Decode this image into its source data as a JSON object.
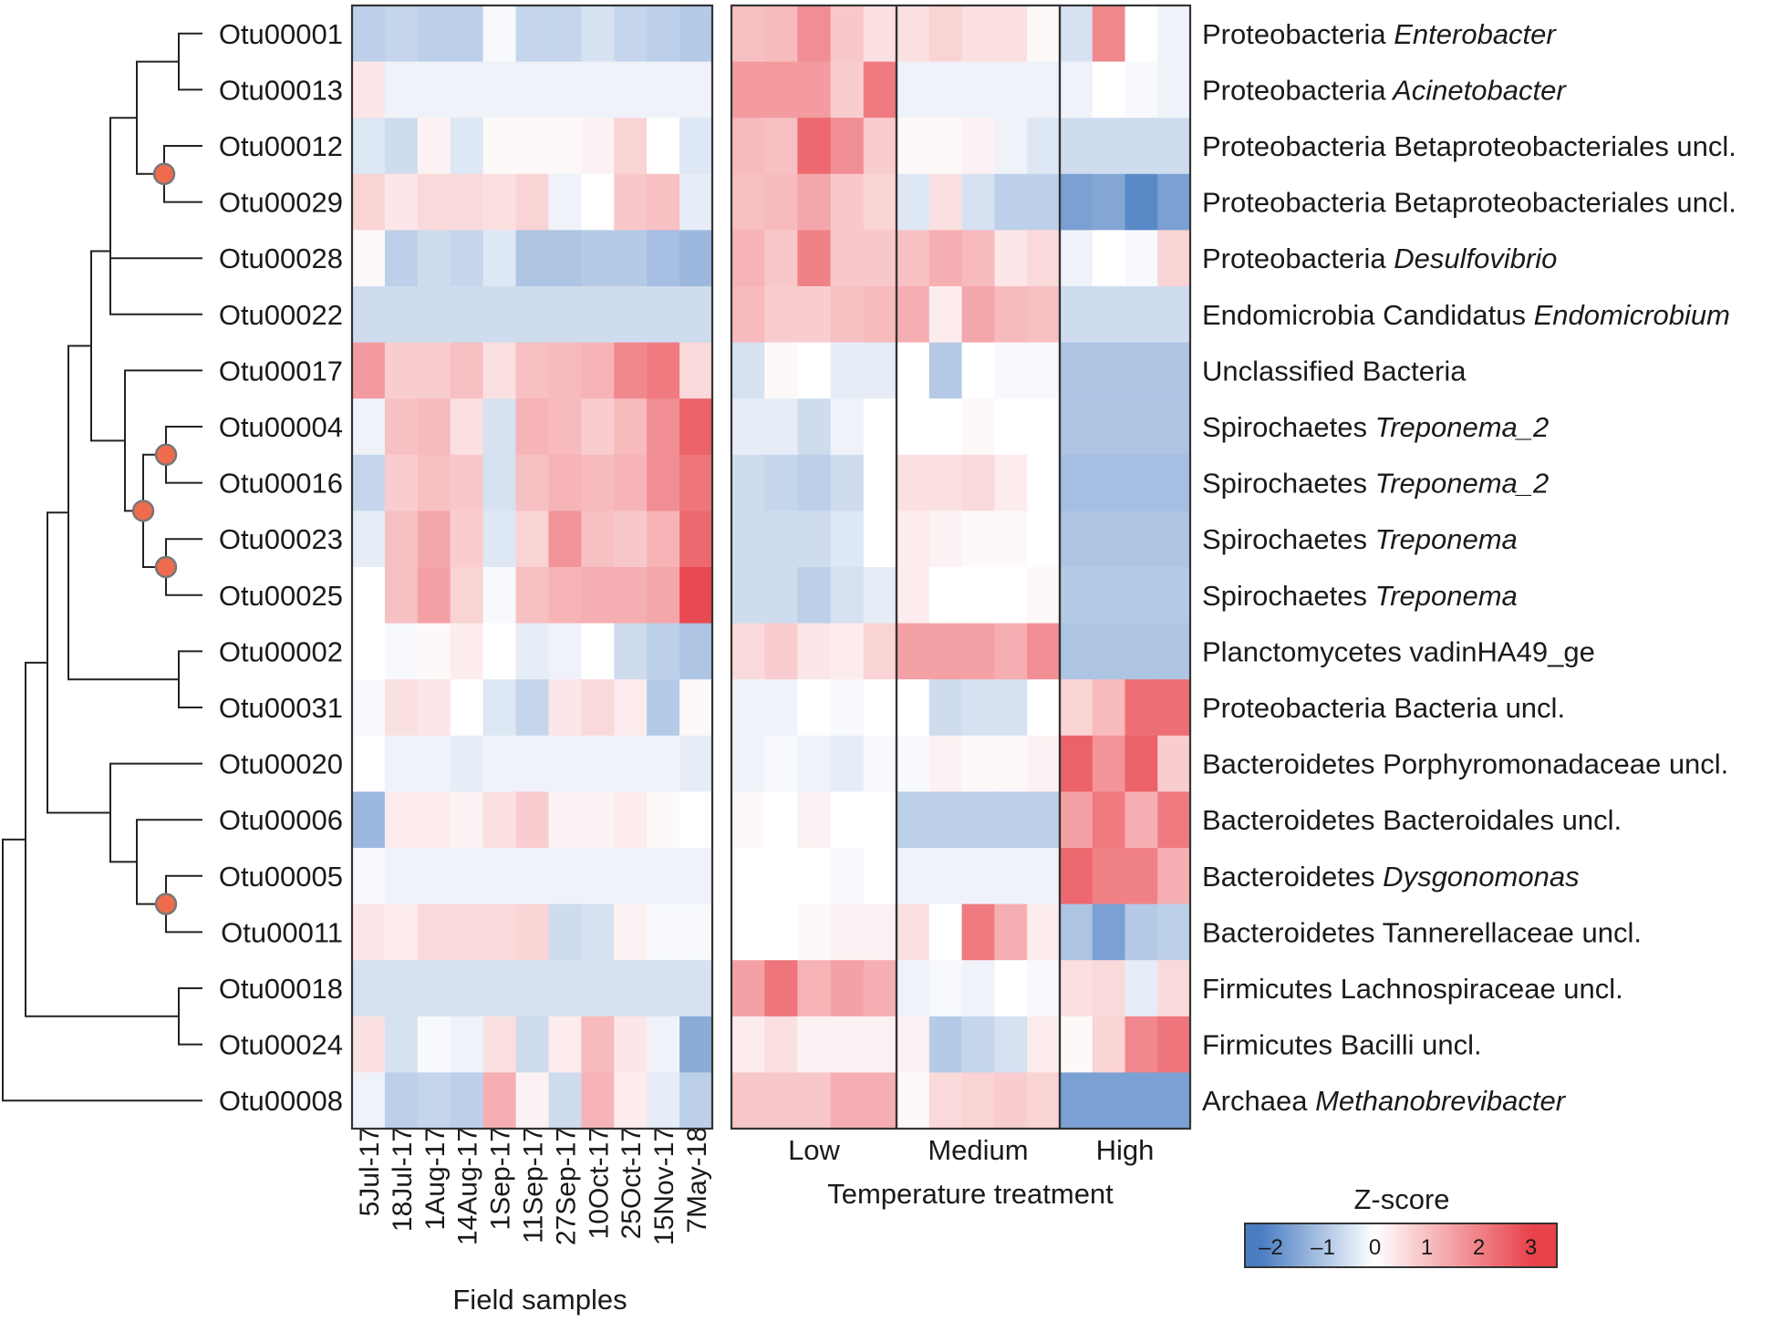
{
  "chart_data": {
    "type": "heatmap",
    "rows": [
      {
        "otu": "Otu00001",
        "taxon": "Proteobacteria",
        "genus": "Enterobacter",
        "genus_italic": true
      },
      {
        "otu": "Otu00013",
        "taxon": "Proteobacteria",
        "genus": "Acinetobacter",
        "genus_italic": true
      },
      {
        "otu": "Otu00012",
        "taxon": "Proteobacteria",
        "genus": "Betaproteobacteriales uncl.",
        "genus_italic": false
      },
      {
        "otu": "Otu00029",
        "taxon": "Proteobacteria",
        "genus": "Betaproteobacteriales uncl.",
        "genus_italic": false
      },
      {
        "otu": "Otu00028",
        "taxon": "Proteobacteria",
        "genus": "Desulfovibrio",
        "genus_italic": true
      },
      {
        "otu": "Otu00022",
        "taxon": "Endomicrobia  Candidatus",
        "genus": "Endomicrobium",
        "genus_italic": true
      },
      {
        "otu": "Otu00017",
        "taxon": "Unclassified Bacteria",
        "genus": "",
        "genus_italic": false
      },
      {
        "otu": "Otu00004",
        "taxon": "Spirochaetes",
        "genus": "Treponema_2",
        "genus_italic": true
      },
      {
        "otu": "Otu00016",
        "taxon": "Spirochaetes",
        "genus": "Treponema_2",
        "genus_italic": true
      },
      {
        "otu": "Otu00023",
        "taxon": "Spirochaetes",
        "genus": "Treponema",
        "genus_italic": true
      },
      {
        "otu": "Otu00025",
        "taxon": "Spirochaetes",
        "genus": "Treponema",
        "genus_italic": true
      },
      {
        "otu": "Otu00002",
        "taxon": "Planctomycetes vadinHA49_ge",
        "genus": "",
        "genus_italic": false
      },
      {
        "otu": "Otu00031",
        "taxon": "Proteobacteria  Bacteria uncl.",
        "genus": "",
        "genus_italic": false
      },
      {
        "otu": "Otu00020",
        "taxon": "Bacteroidetes  Porphyromonadaceae uncl.",
        "genus": "",
        "genus_italic": false
      },
      {
        "otu": "Otu00006",
        "taxon": "Bacteroidetes  Bacteroidales uncl.",
        "genus": "",
        "genus_italic": false
      },
      {
        "otu": "Otu00005",
        "taxon": "Bacteroidetes",
        "genus": "Dysgonomonas",
        "genus_italic": true
      },
      {
        "otu": "Otu00011",
        "taxon": "Bacteroidetes Tannerellaceae uncl.",
        "genus": "",
        "genus_italic": false
      },
      {
        "otu": "Otu00018",
        "taxon": "Firmicutes  Lachnospiraceae uncl.",
        "genus": "",
        "genus_italic": false
      },
      {
        "otu": "Otu00024",
        "taxon": "Firmicutes  Bacilli uncl.",
        "genus": "",
        "genus_italic": false
      },
      {
        "otu": "Otu00008",
        "taxon": "Archaea",
        "genus": "Methanobrevibacter",
        "genus_italic": true
      }
    ],
    "field_samples": {
      "xlabel": "Field samples",
      "columns": [
        "5Jul-17",
        "18Jul-17",
        "1Aug-17",
        "14Aug-17",
        "1Sep-17",
        "11Sep-17",
        "27Sep-17",
        "10Oct-17",
        "25Oct-17",
        "15Nov-17",
        "7May-18"
      ],
      "values": [
        [
          -0.8,
          -0.7,
          -0.8,
          -0.8,
          -0.1,
          -0.7,
          -0.7,
          -0.5,
          -0.7,
          -0.8,
          -0.9
        ],
        [
          0.4,
          -0.2,
          -0.2,
          -0.2,
          -0.2,
          -0.2,
          -0.2,
          -0.2,
          -0.2,
          -0.2,
          -0.2
        ],
        [
          -0.4,
          -0.6,
          0.2,
          -0.4,
          0.1,
          0.1,
          0.1,
          0.2,
          0.7,
          0.0,
          -0.4
        ],
        [
          0.7,
          0.4,
          0.6,
          0.6,
          0.5,
          0.7,
          -0.2,
          0.0,
          0.9,
          1.0,
          -0.3
        ],
        [
          0.1,
          -0.8,
          -0.6,
          -0.7,
          -0.4,
          -1.0,
          -1.0,
          -0.9,
          -0.9,
          -1.1,
          -1.2
        ],
        [
          -0.6,
          -0.6,
          -0.6,
          -0.6,
          -0.6,
          -0.6,
          -0.6,
          -0.6,
          -0.6,
          -0.6,
          -0.6
        ],
        [
          1.6,
          0.8,
          0.8,
          1.0,
          0.5,
          1.0,
          1.1,
          1.2,
          1.9,
          2.1,
          0.6
        ],
        [
          -0.2,
          1.0,
          1.1,
          0.5,
          -0.5,
          1.2,
          1.1,
          0.8,
          1.1,
          1.8,
          2.5
        ],
        [
          -0.7,
          0.8,
          1.0,
          0.9,
          -0.5,
          1.0,
          1.2,
          1.1,
          1.2,
          1.8,
          2.2
        ],
        [
          -0.3,
          1.0,
          1.4,
          0.8,
          -0.4,
          0.7,
          1.7,
          1.0,
          0.9,
          1.2,
          2.4
        ],
        [
          0.0,
          1.0,
          1.5,
          0.7,
          -0.1,
          1.0,
          1.2,
          1.3,
          1.3,
          1.4,
          2.9
        ],
        [
          0.0,
          -0.1,
          0.1,
          0.3,
          0.0,
          -0.3,
          -0.2,
          0.0,
          -0.6,
          -0.8,
          -1.0
        ],
        [
          -0.1,
          0.5,
          0.4,
          0.0,
          -0.4,
          -0.7,
          0.4,
          0.6,
          0.3,
          -0.9,
          0.1
        ],
        [
          0.0,
          -0.2,
          -0.2,
          -0.3,
          -0.2,
          -0.2,
          -0.2,
          -0.2,
          -0.2,
          -0.2,
          -0.3
        ],
        [
          -1.2,
          0.3,
          0.3,
          0.2,
          0.5,
          0.8,
          0.2,
          0.2,
          0.3,
          0.1,
          0.0
        ],
        [
          -0.1,
          -0.2,
          -0.2,
          -0.2,
          -0.2,
          -0.2,
          -0.2,
          -0.2,
          -0.2,
          -0.2,
          -0.2
        ],
        [
          0.4,
          0.3,
          0.6,
          0.6,
          0.6,
          0.7,
          -0.6,
          -0.5,
          0.2,
          -0.1,
          -0.1
        ],
        [
          -0.5,
          -0.5,
          -0.5,
          -0.5,
          -0.5,
          -0.5,
          -0.5,
          -0.5,
          -0.5,
          -0.5,
          -0.5
        ],
        [
          0.5,
          -0.5,
          -0.1,
          -0.2,
          0.5,
          -0.6,
          0.3,
          1.1,
          0.4,
          -0.2,
          -1.4
        ],
        [
          -0.2,
          -0.8,
          -0.7,
          -0.8,
          1.3,
          0.2,
          -0.6,
          1.2,
          0.3,
          -0.3,
          -0.8
        ]
      ]
    },
    "temperature": {
      "xlabel": "Temperature treatment",
      "groups": [
        {
          "label": "Low",
          "ncols": 5
        },
        {
          "label": "Medium",
          "ncols": 5
        },
        {
          "label": "High",
          "ncols": 4
        }
      ],
      "values": [
        [
          1.0,
          1.1,
          1.8,
          0.9,
          0.5,
          0.5,
          0.7,
          0.5,
          0.5,
          0.1,
          -0.5,
          1.9,
          0.0,
          -0.2
        ],
        [
          1.6,
          1.6,
          1.6,
          0.8,
          2.1,
          -0.2,
          -0.2,
          -0.2,
          -0.2,
          -0.2,
          -0.2,
          0.0,
          -0.1,
          -0.2
        ],
        [
          1.1,
          1.0,
          2.4,
          1.8,
          0.8,
          0.1,
          0.1,
          0.2,
          -0.2,
          -0.4,
          -0.6,
          -0.6,
          -0.6,
          -0.6
        ],
        [
          1.0,
          1.1,
          1.4,
          0.9,
          0.7,
          -0.4,
          0.5,
          -0.5,
          -0.8,
          -0.8,
          -1.6,
          -1.5,
          -2.0,
          -1.6
        ],
        [
          1.2,
          0.9,
          2.0,
          0.9,
          0.9,
          1.0,
          1.3,
          1.1,
          0.4,
          0.6,
          -0.2,
          0.0,
          -0.1,
          0.7
        ],
        [
          1.1,
          0.8,
          0.8,
          1.0,
          1.1,
          1.3,
          0.3,
          1.4,
          1.1,
          1.0,
          -0.6,
          -0.6,
          -0.6,
          -0.6
        ],
        [
          -0.5,
          0.1,
          0.0,
          -0.3,
          -0.3,
          0.0,
          -0.9,
          0.0,
          -0.1,
          -0.1,
          -1.0,
          -1.0,
          -1.0,
          -1.0
        ],
        [
          -0.3,
          -0.3,
          -0.6,
          -0.2,
          0.0,
          0.0,
          0.0,
          0.1,
          0.0,
          0.0,
          -1.0,
          -1.0,
          -1.0,
          -1.0
        ],
        [
          -0.6,
          -0.7,
          -0.8,
          -0.6,
          0.0,
          0.5,
          0.5,
          0.6,
          0.3,
          0.0,
          -1.1,
          -1.1,
          -1.1,
          -1.1
        ],
        [
          -0.6,
          -0.6,
          -0.6,
          -0.4,
          0.0,
          0.3,
          0.2,
          0.1,
          0.1,
          0.0,
          -1.0,
          -1.0,
          -1.0,
          -1.0
        ],
        [
          -0.6,
          -0.6,
          -0.8,
          -0.5,
          -0.3,
          0.3,
          0.0,
          0.0,
          0.0,
          0.1,
          -0.9,
          -0.9,
          -0.9,
          -0.9
        ],
        [
          0.6,
          0.8,
          0.4,
          0.3,
          0.7,
          1.5,
          1.5,
          1.5,
          1.3,
          1.8,
          -1.0,
          -1.0,
          -1.0,
          -1.0
        ],
        [
          -0.2,
          -0.2,
          0.0,
          -0.1,
          0.0,
          0.0,
          -0.6,
          -0.5,
          -0.5,
          0.0,
          0.7,
          1.1,
          2.3,
          2.3
        ],
        [
          -0.2,
          -0.1,
          -0.2,
          -0.3,
          -0.1,
          -0.1,
          0.2,
          0.1,
          0.1,
          0.2,
          2.5,
          1.7,
          2.5,
          0.8
        ],
        [
          0.1,
          0.0,
          0.2,
          0.0,
          0.0,
          -0.8,
          -0.8,
          -0.8,
          -0.8,
          -0.8,
          1.5,
          2.1,
          1.3,
          2.1
        ],
        [
          0.0,
          0.0,
          0.0,
          -0.1,
          0.0,
          -0.2,
          -0.2,
          -0.2,
          -0.2,
          -0.2,
          2.4,
          2.0,
          2.0,
          1.3
        ],
        [
          0.0,
          0.0,
          0.1,
          0.2,
          0.2,
          0.5,
          0.0,
          2.1,
          1.3,
          0.3,
          -1.0,
          -1.6,
          -0.9,
          -0.8
        ],
        [
          1.5,
          2.2,
          1.2,
          1.5,
          1.3,
          -0.2,
          -0.1,
          -0.2,
          0.0,
          -0.1,
          0.5,
          0.6,
          -0.3,
          0.6
        ],
        [
          0.3,
          0.5,
          0.2,
          0.2,
          0.2,
          0.2,
          -0.9,
          -0.7,
          -0.5,
          0.3,
          0.1,
          0.7,
          1.9,
          2.2
        ],
        [
          0.9,
          0.9,
          0.9,
          1.3,
          1.3,
          0.1,
          0.6,
          0.7,
          0.8,
          0.7,
          -1.6,
          -1.6,
          -1.6,
          -1.6
        ]
      ]
    },
    "legend": {
      "title": "Z-score",
      "ticks": [
        "–2",
        "–1",
        "0",
        "1",
        "2",
        "3"
      ],
      "range": [
        -2.5,
        3.5
      ],
      "colors": {
        "negative": "#4a7dc2",
        "neutral": "#ffffff",
        "positive": "#e8434b"
      }
    },
    "tree": {
      "node_marker_color": "#ee6c4d",
      "node_marker_stroke": "#777777"
    }
  }
}
